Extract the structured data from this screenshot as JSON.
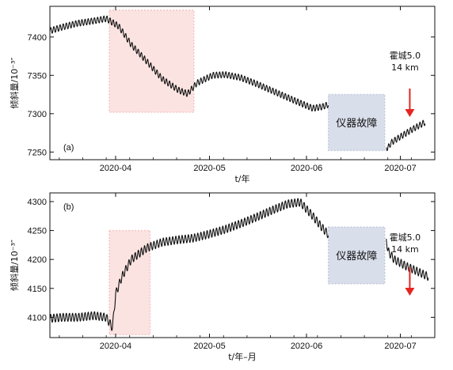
{
  "chart_data": [
    {
      "type": "line",
      "panel_label": "(a)",
      "ylabel": "倾斜量/10⁻³″",
      "xlabel": "t/年",
      "ylim": [
        7240,
        7440
      ],
      "yticks": [
        7250,
        7300,
        7350,
        7400
      ],
      "x_ticks": [
        "2020-04",
        "2020-05",
        "2020-06",
        "2020-07"
      ],
      "x_domain": [
        "2020-03-11",
        "2020-07-12"
      ],
      "x_tick_dates": [
        "2020-04-01",
        "2020-05-01",
        "2020-06-01",
        "2020-07-01"
      ],
      "series": [
        {
          "x": [
            "2020-03-11",
            "2020-03-15",
            "2020-03-20",
            "2020-03-25",
            "2020-03-29",
            "2020-04-02",
            "2020-04-06",
            "2020-04-11",
            "2020-04-16",
            "2020-04-21",
            "2020-04-24",
            "2020-04-27",
            "2020-05-02",
            "2020-05-06",
            "2020-05-11",
            "2020-05-16",
            "2020-05-21",
            "2020-05-26",
            "2020-05-30",
            "2020-06-03",
            "2020-06-06",
            "2020-06-08",
            "2020-06-27",
            "2020-06-28",
            "2020-07-01",
            "2020-07-05",
            "2020-07-09"
          ],
          "y": [
            7408,
            7413,
            7418,
            7421,
            7424,
            7414,
            7390,
            7368,
            7345,
            7331,
            7326,
            7340,
            7350,
            7351,
            7347,
            7339,
            7330,
            7321,
            7314,
            7307,
            7309,
            7312,
            7255,
            7262,
            7270,
            7280,
            7289
          ]
        }
      ],
      "highlight": {
        "x": [
          "2020-03-30",
          "2020-04-26"
        ],
        "y": [
          7302,
          7435
        ],
        "color": "#fbe3e1"
      },
      "fault": {
        "x": [
          "2020-06-08",
          "2020-06-26"
        ],
        "y": [
          7252,
          7325
        ],
        "label": "仪器故障",
        "color": "#d9deeb"
      },
      "annotation": {
        "line1": "霍城5.0",
        "line2": "14 km",
        "x": "2020-07-03",
        "arrow_color": "#e52521"
      }
    },
    {
      "type": "line",
      "panel_label": "(b)",
      "ylabel": "倾斜量/10⁻³″",
      "xlabel": "t/年–月",
      "ylim": [
        4065,
        4315
      ],
      "yticks": [
        4100,
        4150,
        4200,
        4250,
        4300
      ],
      "x_ticks": [
        "2020-04",
        "2020-05",
        "2020-06",
        "2020-07"
      ],
      "x_domain": [
        "2020-03-11",
        "2020-07-12"
      ],
      "x_tick_dates": [
        "2020-04-01",
        "2020-05-01",
        "2020-06-01",
        "2020-07-01"
      ],
      "series": [
        {
          "x": [
            "2020-03-11",
            "2020-03-15",
            "2020-03-20",
            "2020-03-25",
            "2020-03-29",
            "2020-03-31",
            "2020-04-01",
            "2020-04-03",
            "2020-04-06",
            "2020-04-11",
            "2020-04-16",
            "2020-04-21",
            "2020-04-26",
            "2020-05-01",
            "2020-05-06",
            "2020-05-11",
            "2020-05-16",
            "2020-05-21",
            "2020-05-26",
            "2020-05-30",
            "2020-06-03",
            "2020-06-06",
            "2020-06-08",
            "2020-06-26",
            "2020-06-27",
            "2020-06-29",
            "2020-07-03",
            "2020-07-07",
            "2020-07-10"
          ],
          "y": [
            4098,
            4100,
            4100,
            4103,
            4100,
            4082,
            4140,
            4170,
            4200,
            4220,
            4230,
            4234,
            4237,
            4244,
            4252,
            4262,
            4273,
            4285,
            4296,
            4299,
            4275,
            4255,
            4243,
            4260,
            4215,
            4200,
            4188,
            4178,
            4170
          ]
        }
      ],
      "highlight": {
        "x": [
          "2020-03-30",
          "2020-04-12"
        ],
        "y": [
          4070,
          4250
        ],
        "color": "#fbe3e1"
      },
      "fault": {
        "x": [
          "2020-06-08",
          "2020-06-26"
        ],
        "y": [
          4158,
          4256
        ],
        "label": "仪器故障",
        "color": "#d9deeb"
      },
      "annotation": {
        "line1": "霍城5.0",
        "line2": "14 km",
        "x": "2020-07-03",
        "arrow_color": "#e52521"
      }
    }
  ]
}
